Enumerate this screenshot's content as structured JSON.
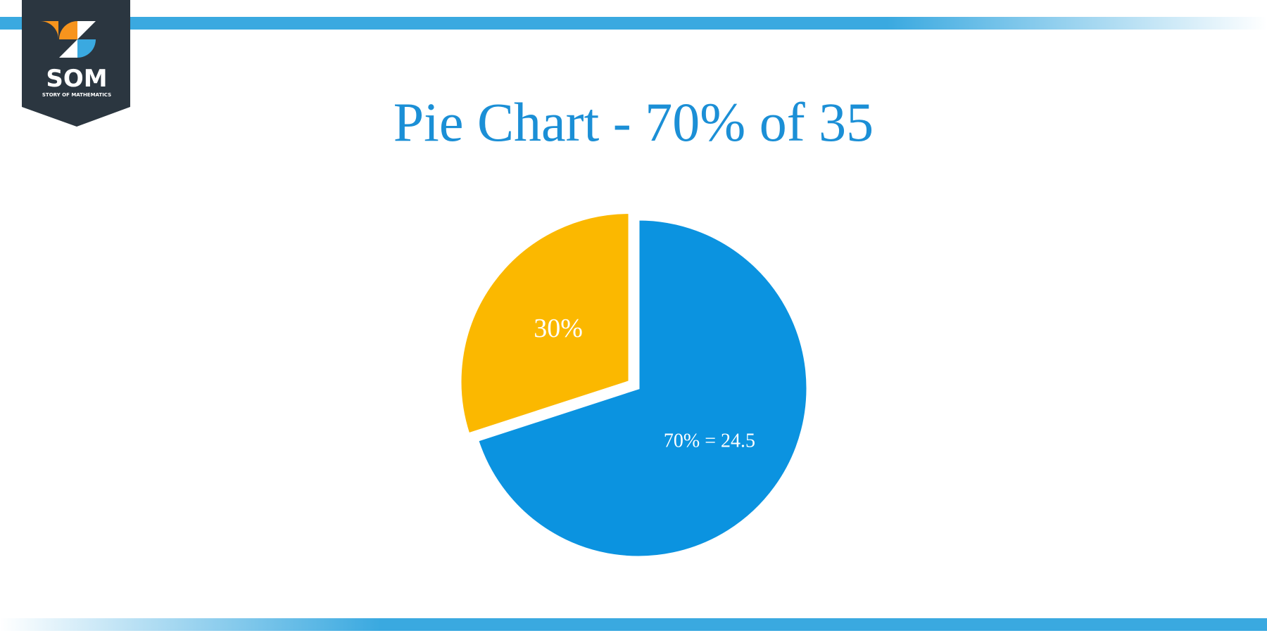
{
  "logo": {
    "text": "SOM",
    "subtitle": "STORY OF MATHEMATICS"
  },
  "chart_data": {
    "type": "pie",
    "title": "Pie Chart - 70% of 35",
    "categories": [
      null,
      null
    ],
    "values": [
      70,
      30
    ],
    "value_labels": [
      "70% = 24.5",
      "30%"
    ],
    "colors": [
      "#0b93e0",
      "#fbb800"
    ],
    "explode": [
      false,
      true
    ]
  }
}
